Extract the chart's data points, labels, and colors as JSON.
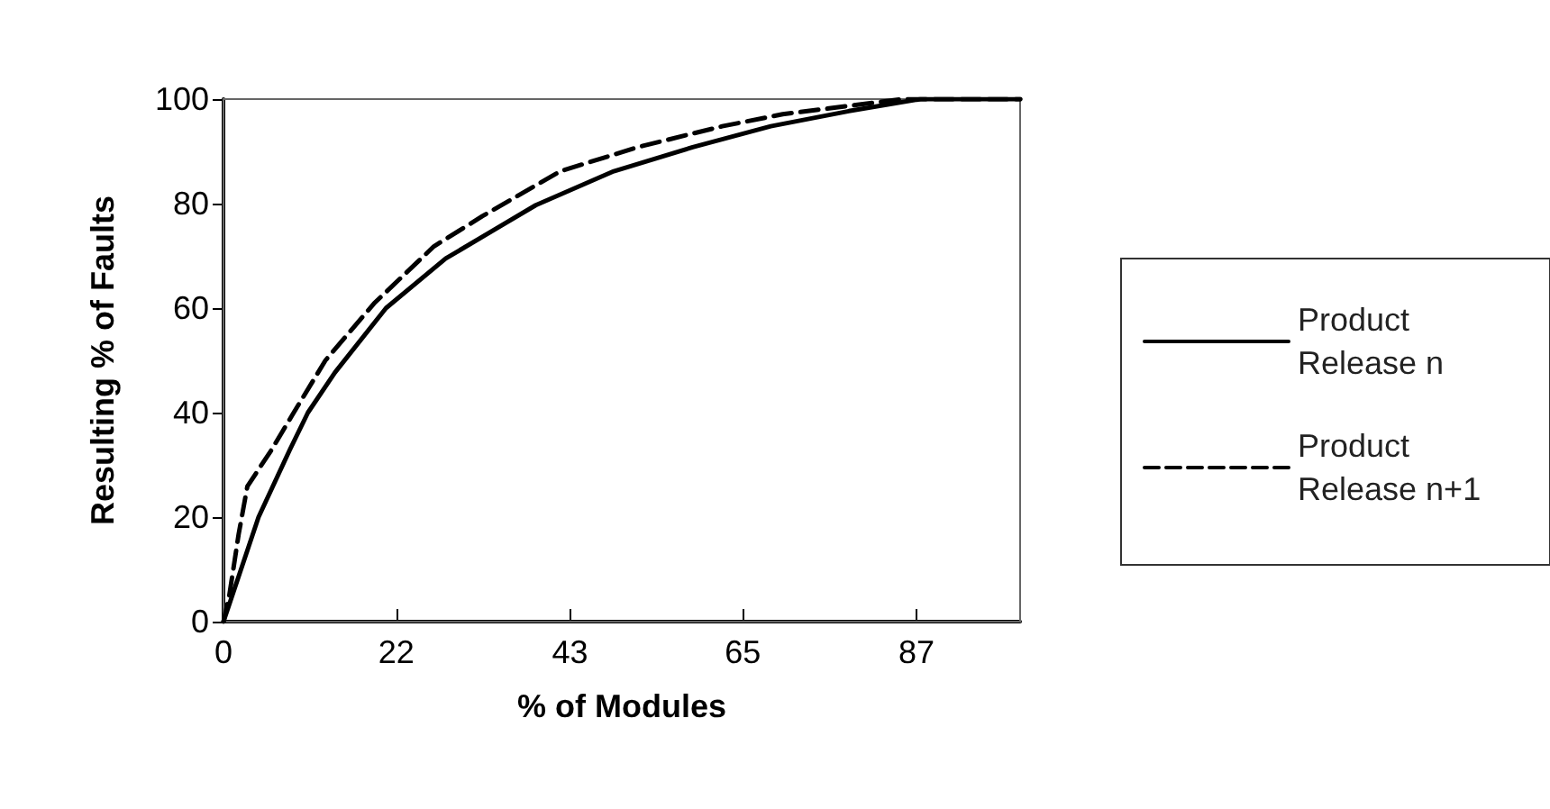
{
  "chart_data": {
    "type": "line",
    "xlabel": "% of Modules",
    "ylabel": "Resulting % of Faults",
    "xlim": [
      0,
      100
    ],
    "xticks": [
      0,
      {
        "value": 21.7,
        "label": "22"
      },
      {
        "value": 43.5,
        "label": "43"
      },
      {
        "value": 65.2,
        "label": "65"
      },
      87
    ],
    "ylim": [
      0,
      100
    ],
    "yticks": [
      0,
      20,
      40,
      60,
      80,
      100
    ],
    "grid": false,
    "legend": "right",
    "marker": "none",
    "series": [
      {
        "name": "Product Release n",
        "color": "#000000",
        "line_style": "solid",
        "x": [
          0,
          4.4,
          8.3,
          10.6,
          14,
          20.4,
          27.9,
          39.2,
          49,
          58.9,
          68.7,
          78.5,
          87.5,
          100
        ],
        "values": [
          0,
          20,
          32.8,
          40,
          47.7,
          60,
          69.5,
          79.7,
          86.2,
          90.8,
          94.8,
          97.7,
          100,
          100
        ]
      },
      {
        "name": "Product Release n+1",
        "color": "#000000",
        "line_style": "dashed",
        "x": [
          0,
          0.75,
          1.9,
          3,
          6,
          8.7,
          12.8,
          18.9,
          26.4,
          32.5,
          42.3,
          52,
          62.6,
          70.2,
          85.3,
          100
        ],
        "values": [
          0,
          5.2,
          16.7,
          25.9,
          32.8,
          39.7,
          50,
          60.9,
          71.8,
          77.6,
          86.2,
          90.8,
          94.8,
          97.1,
          100,
          100
        ]
      }
    ]
  }
}
